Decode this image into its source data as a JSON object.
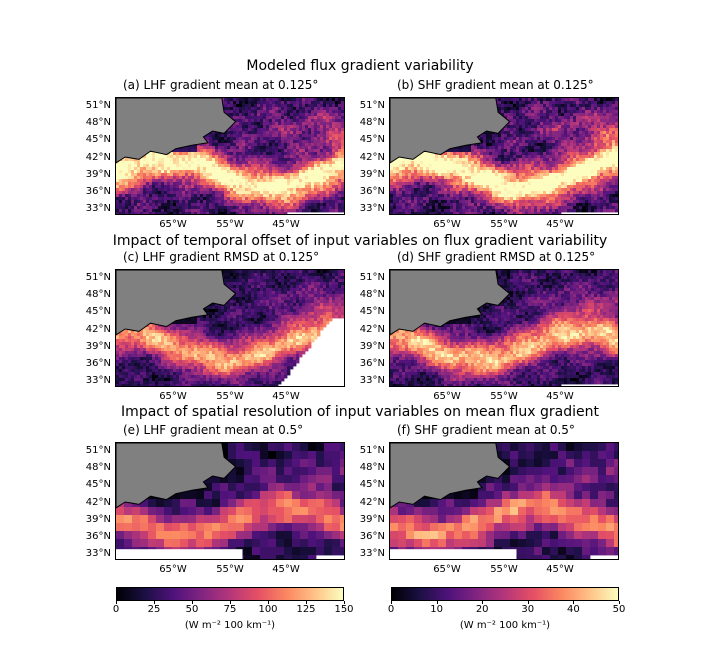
{
  "figure": {
    "row_titles": [
      "Modeled flux gradient variability",
      "Impact of temporal offset of input variables on flux gradient variability",
      "Impact of spatial resolution of input variables on mean flux gradient"
    ]
  },
  "chart_data": [
    {
      "type": "heatmap",
      "panel": "a",
      "title": "(a) LHF gradient mean at 0.125$^\\circ$",
      "title_display": "(a) LHF gradient mean at 0.125°",
      "colormap": "magma",
      "clim": [
        0,
        150
      ],
      "resolution": "0.125"
    },
    {
      "type": "heatmap",
      "panel": "b",
      "title_display": "(b) SHF gradient mean at 0.125°",
      "colormap": "magma",
      "clim": [
        0,
        50
      ],
      "resolution": "0.125"
    },
    {
      "type": "heatmap",
      "panel": "c",
      "title_display": "(c) LHF gradient RMSD at 0.125°",
      "colormap": "magma",
      "clim": [
        0,
        150
      ],
      "resolution": "0.125"
    },
    {
      "type": "heatmap",
      "panel": "d",
      "title_display": "(d) SHF gradient RMSD at 0.125°",
      "colormap": "magma",
      "clim": [
        0,
        50
      ],
      "resolution": "0.125"
    },
    {
      "type": "heatmap",
      "panel": "e",
      "title_display": "(e) LHF gradient mean at 0.5°",
      "colormap": "magma",
      "clim": [
        0,
        150
      ],
      "resolution": "0.5"
    },
    {
      "type": "heatmap",
      "panel": "f",
      "title_display": "(f) SHF gradient mean at 0.5°",
      "colormap": "magma",
      "clim": [
        0,
        50
      ],
      "resolution": "0.5"
    }
  ],
  "axes": {
    "lat_ticks": [
      "51°N",
      "48°N",
      "45°N",
      "42°N",
      "39°N",
      "36°N",
      "33°N"
    ],
    "lon_ticks": [
      "65°W",
      "55°W",
      "45°W"
    ]
  },
  "colorbars": {
    "lhf": {
      "ticks": [
        "0",
        "25",
        "50",
        "75",
        "100",
        "125",
        "150"
      ],
      "unit": "(W m⁻² 100 km⁻¹)"
    },
    "shf": {
      "ticks": [
        "0",
        "10",
        "20",
        "30",
        "40",
        "50"
      ],
      "unit": "(W m⁻² 100 km⁻¹)"
    }
  },
  "colors": {
    "land": "#808080",
    "nodata": "#ffffff",
    "cmap": [
      "#000004",
      "#1c1044",
      "#4f127b",
      "#812581",
      "#b5367a",
      "#e55064",
      "#fb8761",
      "#fec287",
      "#fcfdbf"
    ]
  }
}
